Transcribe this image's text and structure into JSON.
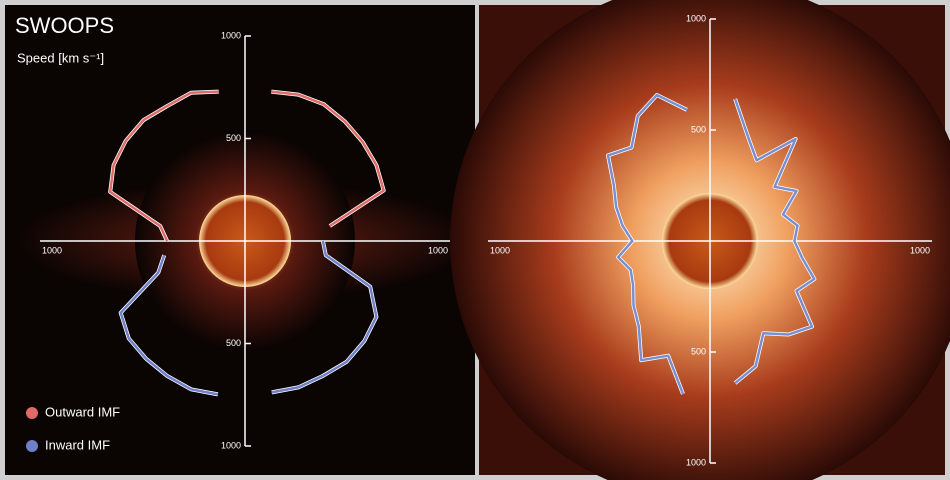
{
  "chart_data": [
    {
      "type": "polar",
      "title": "SWOOPS",
      "subtitle": "Speed [km s⁻¹]",
      "legend": "lower left",
      "x": [
        0,
        10,
        20,
        30,
        40,
        50,
        60,
        70,
        80,
        90,
        100,
        110,
        120,
        130,
        140,
        150,
        160,
        170,
        180,
        190,
        200,
        210,
        220,
        230,
        240,
        250,
        260,
        270,
        280,
        290,
        300,
        310,
        320,
        330,
        340,
        350
      ],
      "series": [
        {
          "name": "Outward IMF",
          "color": "#e06a66",
          "values": [
            null,
            740,
            760,
            770,
            760,
            750,
            740,
            720,
            420,
            null,
            null,
            null,
            null,
            null,
            null,
            null,
            null,
            null,
            null,
            null,
            null,
            null,
            null,
            null,
            null,
            null,
            null,
            380,
            420,
            700,
            740,
            760,
            770,
            760,
            770,
            740
          ]
        },
        {
          "name": "Inward IMF",
          "color": "#6f80c8",
          "values": [
            null,
            null,
            null,
            null,
            null,
            null,
            null,
            null,
            null,
            380,
            400,
            650,
            740,
            760,
            770,
            760,
            760,
            750,
            null,
            760,
            770,
            760,
            750,
            740,
            700,
            450,
            400,
            null,
            null,
            null,
            null,
            null,
            null,
            null,
            null,
            null
          ]
        }
      ],
      "ylim": [
        0,
        1000
      ],
      "yticks": [
        500,
        1000
      ]
    },
    {
      "type": "polar",
      "x": [
        0,
        10,
        20,
        30,
        40,
        50,
        60,
        70,
        80,
        90,
        100,
        110,
        120,
        130,
        140,
        150,
        160,
        170,
        180,
        190,
        200,
        210,
        220,
        230,
        240,
        250,
        260,
        270,
        280,
        290,
        300,
        310,
        320,
        330,
        340,
        350
      ],
      "series": [
        {
          "color": "#7a8fd0",
          "values": [
            null,
            650,
            500,
            420,
            600,
            380,
            450,
            350,
            400,
            380,
            420,
            500,
            450,
            600,
            550,
            480,
            600,
            650,
            null,
            700,
            550,
            620,
            500,
            450,
            400,
            380,
            420,
            350,
            400,
            450,
            500,
            600,
            550,
            650,
            700,
            600
          ]
        }
      ],
      "ylim": [
        0,
        1000
      ],
      "yticks": [
        500,
        1000
      ]
    }
  ]
}
